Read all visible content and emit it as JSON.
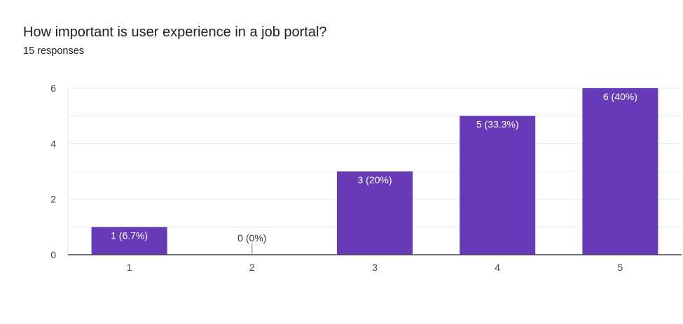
{
  "header": {
    "title": "How important is user experience in a job portal?",
    "subtitle": "15 responses"
  },
  "colors": {
    "bar": "#673ab7",
    "grid": "#e8e8e8",
    "axis": "#444444",
    "label_on_bar": "#ffffff",
    "label_outside": "#333333"
  },
  "chart_data": {
    "type": "bar",
    "title": "How important is user experience in a job portal?",
    "subtitle": "15 responses",
    "xlabel": "",
    "ylabel": "",
    "categories": [
      "1",
      "2",
      "3",
      "4",
      "5"
    ],
    "values": [
      1,
      0,
      3,
      5,
      6
    ],
    "data_labels": [
      "1 (6.7%)",
      "0 (0%)",
      "3 (20%)",
      "5 (33.3%)",
      "6 (40%)"
    ],
    "ylim": [
      0,
      6
    ],
    "yticks": [
      "0",
      "2",
      "4",
      "6"
    ],
    "grid": true,
    "legend": "none"
  }
}
